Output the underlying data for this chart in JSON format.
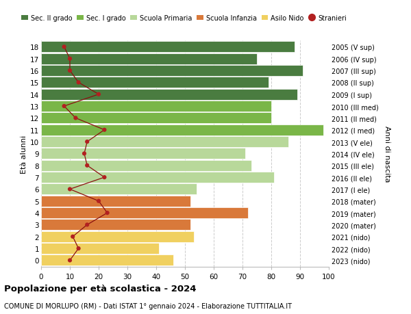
{
  "ages": [
    18,
    17,
    16,
    15,
    14,
    13,
    12,
    11,
    10,
    9,
    8,
    7,
    6,
    5,
    4,
    3,
    2,
    1,
    0
  ],
  "bar_values": [
    88,
    75,
    91,
    79,
    89,
    80,
    80,
    98,
    86,
    71,
    73,
    81,
    54,
    52,
    72,
    52,
    53,
    41,
    46
  ],
  "stranieri": [
    8,
    10,
    10,
    13,
    20,
    8,
    12,
    22,
    16,
    15,
    16,
    22,
    10,
    20,
    23,
    16,
    11,
    13,
    10
  ],
  "right_labels": [
    "2005 (V sup)",
    "2006 (IV sup)",
    "2007 (III sup)",
    "2008 (II sup)",
    "2009 (I sup)",
    "2010 (III med)",
    "2011 (II med)",
    "2012 (I med)",
    "2013 (V ele)",
    "2014 (IV ele)",
    "2015 (III ele)",
    "2016 (II ele)",
    "2017 (I ele)",
    "2018 (mater)",
    "2019 (mater)",
    "2020 (mater)",
    "2021 (nido)",
    "2022 (nido)",
    "2023 (nido)"
  ],
  "bar_colors": [
    "#4a7c40",
    "#4a7c40",
    "#4a7c40",
    "#4a7c40",
    "#4a7c40",
    "#7ab648",
    "#7ab648",
    "#7ab648",
    "#b8d89a",
    "#b8d89a",
    "#b8d89a",
    "#b8d89a",
    "#b8d89a",
    "#d9793a",
    "#d9793a",
    "#d9793a",
    "#f0d060",
    "#f0d060",
    "#f0d060"
  ],
  "legend_labels": [
    "Sec. II grado",
    "Sec. I grado",
    "Scuola Primaria",
    "Scuola Infanzia",
    "Asilo Nido",
    "Stranieri"
  ],
  "legend_colors": [
    "#4a7c40",
    "#7ab648",
    "#b8d89a",
    "#d9793a",
    "#f0d060",
    "#b22020"
  ],
  "stranieri_color": "#b22020",
  "stranieri_line_color": "#8b1010",
  "ylabel_left": "Età alunni",
  "ylabel_right": "Anni di nascita",
  "xlim": [
    0,
    100
  ],
  "xticks": [
    0,
    10,
    20,
    30,
    40,
    50,
    60,
    70,
    80,
    90,
    100
  ],
  "title": "Popolazione per età scolastica - 2024",
  "subtitle": "COMUNE DI MORLUPO (RM) - Dati ISTAT 1° gennaio 2024 - Elaborazione TUTTITALIA.IT",
  "bg_color": "#ffffff",
  "grid_color": "#cccccc"
}
